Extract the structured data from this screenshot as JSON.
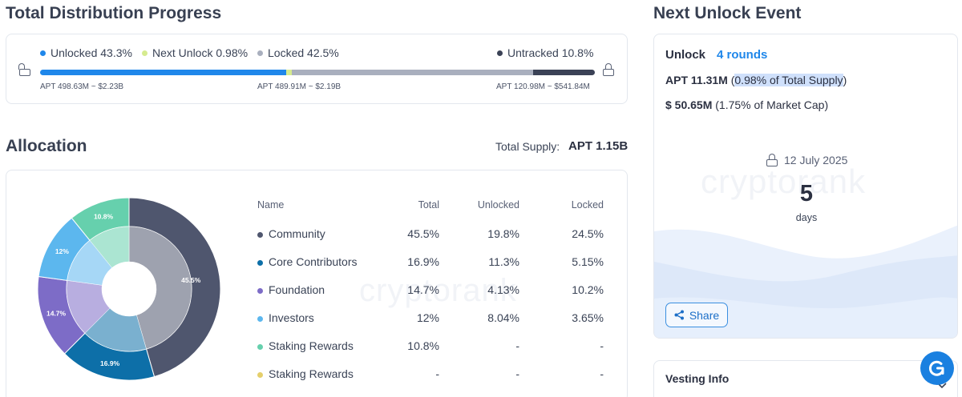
{
  "progress": {
    "title": "Total Distribution Progress",
    "legend": [
      {
        "label": "Unlocked 43.3%",
        "color": "#1f87ea"
      },
      {
        "label": "Next Unlock 0.98%",
        "color": "#d6eb8f"
      },
      {
        "label": "Locked 42.5%",
        "color": "#a9afbe"
      },
      {
        "label": "Untracked 10.8%",
        "color": "#3b4256"
      }
    ],
    "bar": [
      {
        "name": "unlocked",
        "percent": 43.3,
        "color": "#1f87ea"
      },
      {
        "name": "next-unlock",
        "percent": 0.98,
        "color": "#d6eb8f"
      },
      {
        "name": "locked",
        "percent": 42.5,
        "color": "#a9afbe"
      },
      {
        "name": "untracked",
        "percent": 10.8,
        "color": "#3b4256"
      }
    ],
    "amounts": {
      "unlocked": "APT 498.63M ~ $2.23B",
      "locked": "APT 489.91M ~ $2.19B",
      "untracked": "APT 120.98M ~ $541.84M"
    }
  },
  "allocation": {
    "title": "Allocation",
    "total_supply_label": "Total Supply:",
    "total_supply_value": "APT 1.15B",
    "columns": [
      "Name",
      "Total",
      "Unlocked",
      "Locked"
    ],
    "rows": [
      {
        "name": "Community",
        "total": "45.5%",
        "unlocked": "19.8%",
        "locked": "24.5%",
        "color": "#4f566e"
      },
      {
        "name": "Core Contributors",
        "total": "16.9%",
        "unlocked": "11.3%",
        "locked": "5.15%",
        "color": "#0d6fa8"
      },
      {
        "name": "Foundation",
        "total": "14.7%",
        "unlocked": "4.13%",
        "locked": "10.2%",
        "color": "#7d6cc7"
      },
      {
        "name": "Investors",
        "total": "12%",
        "unlocked": "8.04%",
        "locked": "3.65%",
        "color": "#5cb7ee"
      },
      {
        "name": "Staking Rewards",
        "total": "10.8%",
        "unlocked": "-",
        "locked": "-",
        "color": "#66d0ad"
      },
      {
        "name": "Staking Rewards",
        "total": "-",
        "unlocked": "-",
        "locked": "-",
        "color": "#e5cf6b"
      }
    ],
    "pie_labels": [
      "45.5%",
      "16.9%",
      "14.7%",
      "12%",
      "10.8%"
    ],
    "watermark": "cryptorank"
  },
  "next_unlock": {
    "title": "Next Unlock Event",
    "unlock_label": "Unlock",
    "rounds": "4 rounds",
    "apt_amount": "APT 11.31M",
    "apt_note_open": "(",
    "apt_note": "0.98% of Total Supply",
    "apt_note_close": ")",
    "usd_amount": "$ 50.65M",
    "usd_note": "(1.75% of Market Cap)",
    "date": "12 July 2025",
    "countdown_value": "5",
    "countdown_unit": "days",
    "share_label": "Share",
    "watermark": "cryptorank"
  },
  "vesting": {
    "title": "Vesting Info"
  },
  "colors": {
    "accent": "#1f87ea",
    "highlight": "#cfe0fb"
  }
}
